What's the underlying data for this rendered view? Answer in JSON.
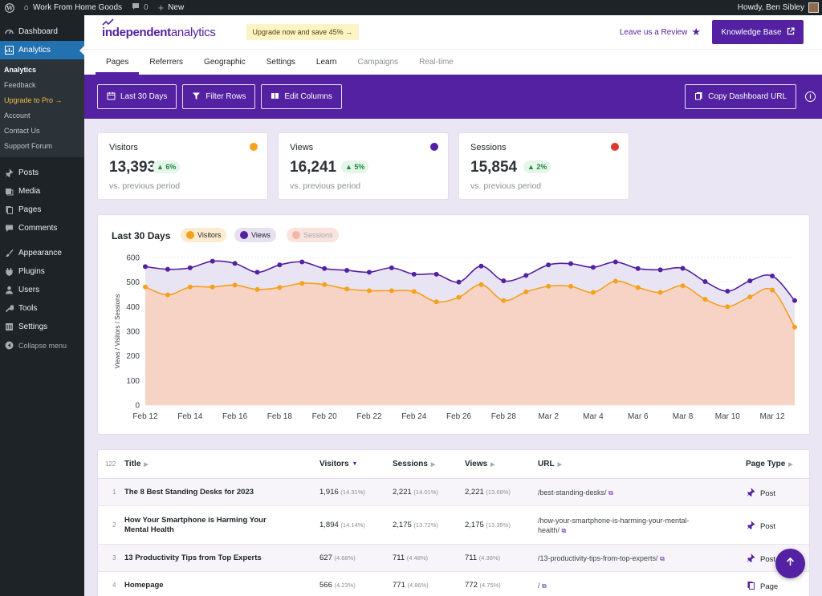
{
  "adminbar": {
    "site_name": "Work From Home Goods",
    "comments_count": "0",
    "new_label": "New",
    "howdy": "Howdy, Ben Sibley"
  },
  "sidebar": {
    "items_top": [
      {
        "label": "Dashboard",
        "icon": "dashboard-icon"
      },
      {
        "label": "Analytics",
        "icon": "analytics-icon"
      }
    ],
    "submenu": [
      {
        "label": "Analytics"
      },
      {
        "label": "Feedback"
      },
      {
        "label": "Upgrade to Pro →"
      },
      {
        "label": "Account"
      },
      {
        "label": "Contact Us"
      },
      {
        "label": "Support Forum"
      }
    ],
    "items_mid": [
      {
        "label": "Posts"
      },
      {
        "label": "Media"
      },
      {
        "label": "Pages"
      },
      {
        "label": "Comments"
      }
    ],
    "items_bottom": [
      {
        "label": "Appearance"
      },
      {
        "label": "Plugins"
      },
      {
        "label": "Users"
      },
      {
        "label": "Tools"
      },
      {
        "label": "Settings"
      }
    ],
    "collapse_label": "Collapse menu"
  },
  "header": {
    "logo_bold": "independent",
    "logo_light": " analytics",
    "upgrade_badge": "Upgrade now and save 45% →",
    "leave_review": "Leave us a Review",
    "knowledge_base": "Knowledge Base"
  },
  "tabs": [
    {
      "label": "Pages"
    },
    {
      "label": "Referrers"
    },
    {
      "label": "Geographic"
    },
    {
      "label": "Settings"
    },
    {
      "label": "Learn"
    },
    {
      "label": "Campaigns"
    },
    {
      "label": "Real-time"
    }
  ],
  "toolbar": {
    "date_range": "Last 30 Days",
    "filter_rows": "Filter Rows",
    "edit_columns": "Edit Columns",
    "copy_url": "Copy Dashboard URL"
  },
  "stats": [
    {
      "label": "Visitors",
      "value": "13,393",
      "delta": "▲ 6%",
      "sub": "vs. previous period",
      "color": "#f4a11c"
    },
    {
      "label": "Views",
      "value": "16,241",
      "delta": "▲ 5%",
      "sub": "vs. previous period",
      "color": "#5321a1"
    },
    {
      "label": "Sessions",
      "value": "15,854",
      "delta": "▲ 2%",
      "sub": "vs. previous period",
      "color": "#d93a2f"
    }
  ],
  "chart_data": {
    "type": "area",
    "title": "Last 30 Days",
    "ylabel": "Views / Visitors / Sessions",
    "ylim": [
      0,
      600
    ],
    "yticks": [
      0,
      100,
      200,
      300,
      400,
      500,
      600
    ],
    "xtick_labels": [
      "Feb 12",
      "Feb 14",
      "Feb 16",
      "Feb 18",
      "Feb 20",
      "Feb 22",
      "Feb 24",
      "Feb 26",
      "Feb 28",
      "Mar 2",
      "Mar 4",
      "Mar 6",
      "Mar 8",
      "Mar 10",
      "Mar 12"
    ],
    "x": [
      "Feb 12",
      "Feb 13",
      "Feb 14",
      "Feb 15",
      "Feb 16",
      "Feb 17",
      "Feb 18",
      "Feb 19",
      "Feb 20",
      "Feb 21",
      "Feb 22",
      "Feb 23",
      "Feb 24",
      "Feb 25",
      "Feb 26",
      "Feb 27",
      "Feb 28",
      "Mar 1",
      "Mar 2",
      "Mar 3",
      "Mar 4",
      "Mar 5",
      "Mar 6",
      "Mar 7",
      "Mar 8",
      "Mar 9",
      "Mar 10",
      "Mar 11",
      "Mar 12",
      "Mar 13"
    ],
    "series": [
      {
        "name": "Visitors",
        "color": "#f4a11c",
        "values": [
          480,
          448,
          480,
          480,
          488,
          470,
          478,
          495,
          490,
          472,
          465,
          465,
          462,
          420,
          438,
          490,
          425,
          460,
          483,
          483,
          458,
          504,
          478,
          458,
          485,
          430,
          400,
          440,
          468,
          317
        ]
      },
      {
        "name": "Views",
        "color": "#5321a1",
        "values": [
          563,
          552,
          558,
          585,
          576,
          540,
          570,
          582,
          555,
          548,
          540,
          558,
          532,
          532,
          500,
          565,
          505,
          527,
          570,
          575,
          560,
          582,
          555,
          550,
          556,
          502,
          463,
          505,
          525,
          425
        ]
      },
      {
        "name": "Sessions",
        "color": "#f0b7a3",
        "hidden": true
      }
    ],
    "grid": true,
    "legend": "top-left"
  },
  "table": {
    "count": "122",
    "headers": {
      "title": "Title",
      "visitors": "Visitors",
      "sessions": "Sessions",
      "views": "Views",
      "url": "URL",
      "page_type": "Page Type"
    },
    "rows": [
      {
        "num": "1",
        "title": "The 8 Best Standing Desks for 2023",
        "visitors": "1,916",
        "visitors_pct": "(14.31%)",
        "sessions": "2,221",
        "sessions_pct": "(14.01%)",
        "views": "2,221",
        "views_pct": "(13.68%)",
        "url": "/best-standing-desks/",
        "type": "Post",
        "type_icon": "pin-icon"
      },
      {
        "num": "2",
        "title": "How Your Smartphone is Harming Your Mental Health",
        "visitors": "1,894",
        "visitors_pct": "(14.14%)",
        "sessions": "2,175",
        "sessions_pct": "(13.72%)",
        "views": "2,175",
        "views_pct": "(13.39%)",
        "url": "/how-your-smartphone-is-harming-your-mental-health/",
        "type": "Post",
        "type_icon": "pin-icon"
      },
      {
        "num": "3",
        "title": "13 Productivity Tips from Top Experts",
        "visitors": "627",
        "visitors_pct": "(4.68%)",
        "sessions": "711",
        "sessions_pct": "(4.48%)",
        "views": "711",
        "views_pct": "(4.38%)",
        "url": "/13-productivity-tips-from-top-experts/",
        "type": "Post",
        "type_icon": "pin-icon"
      },
      {
        "num": "4",
        "title": "Homepage",
        "visitors": "566",
        "visitors_pct": "(4.23%)",
        "sessions": "771",
        "sessions_pct": "(4.86%)",
        "views": "772",
        "views_pct": "(4.75%)",
        "url": "/",
        "type": "Page",
        "type_icon": "page-icon"
      }
    ]
  }
}
